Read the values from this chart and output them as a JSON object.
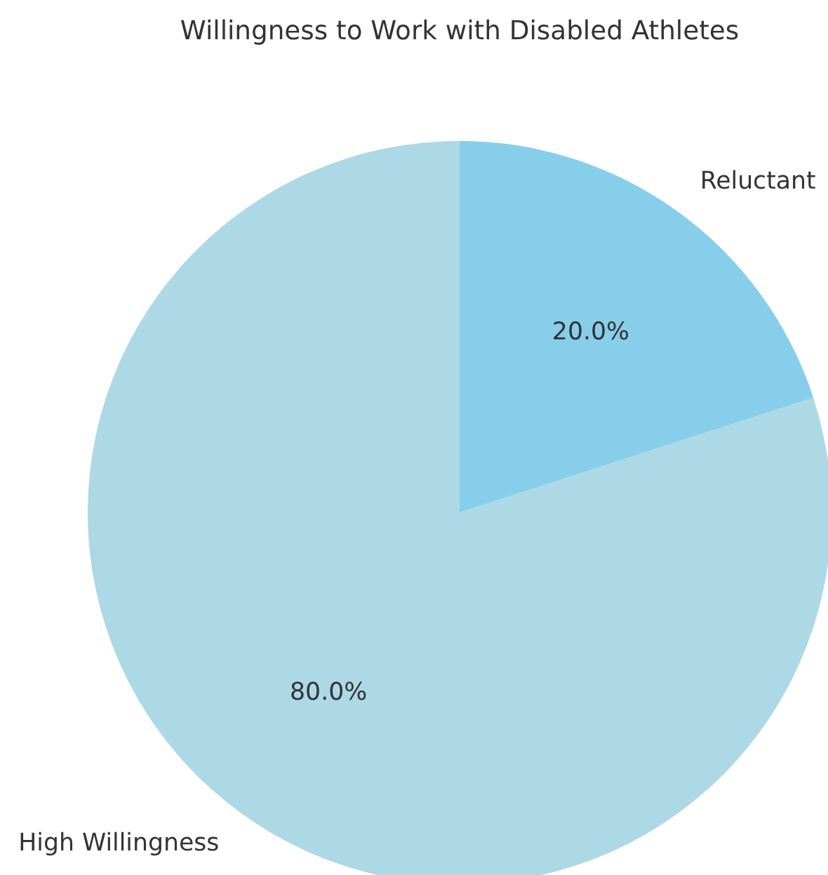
{
  "chart_data": {
    "type": "pie",
    "title": "Willingness to Work with Disabled Athletes",
    "categories": [
      "High Willingness",
      "Reluctant"
    ],
    "values": [
      80,
      20
    ],
    "colors": [
      "#add8e6",
      "#87ceeb"
    ],
    "value_labels": [
      "80.0%",
      "20.0%"
    ]
  }
}
